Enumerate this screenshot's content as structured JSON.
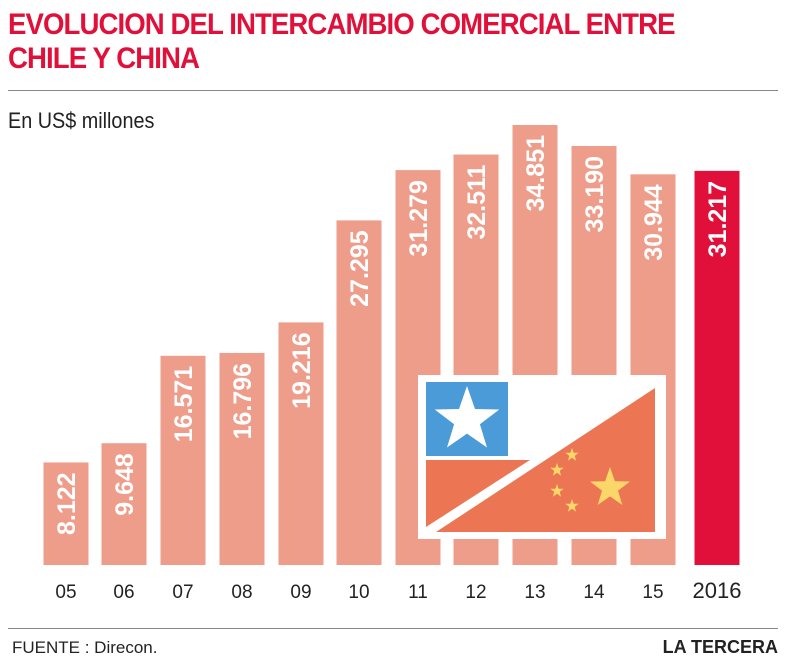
{
  "chart_data": {
    "type": "bar",
    "title": "EVOLUCION DEL INTERCAMBIO COMERCIAL ENTRE CHILE Y CHINA",
    "subtitle": "En US$ millones",
    "categories": [
      "05",
      "06",
      "07",
      "08",
      "09",
      "10",
      "11",
      "12",
      "13",
      "14",
      "15",
      "2016"
    ],
    "values": [
      8122,
      9648,
      16571,
      16796,
      19216,
      27295,
      31279,
      32511,
      34851,
      33190,
      30944,
      31217
    ],
    "data_labels": [
      "8.122",
      "9.648",
      "16.571",
      "16.796",
      "19.216",
      "27.295",
      "31.279",
      "32.511",
      "34.851",
      "33.190",
      "30.944",
      "31.217"
    ],
    "highlight_category": "2016",
    "colors": {
      "bar": "#ee9d8b",
      "highlight": "#e0103a",
      "title": "#e0103a"
    },
    "grid": false
  },
  "source": "FUENTE : Direcon.",
  "brand": "LA TERCERA",
  "decoration": {
    "icon": "chile-china-flag",
    "colors": {
      "chile_blue": "#4a9bd8",
      "red": "#ec7653",
      "star_yellow": "#fbd76a"
    }
  }
}
